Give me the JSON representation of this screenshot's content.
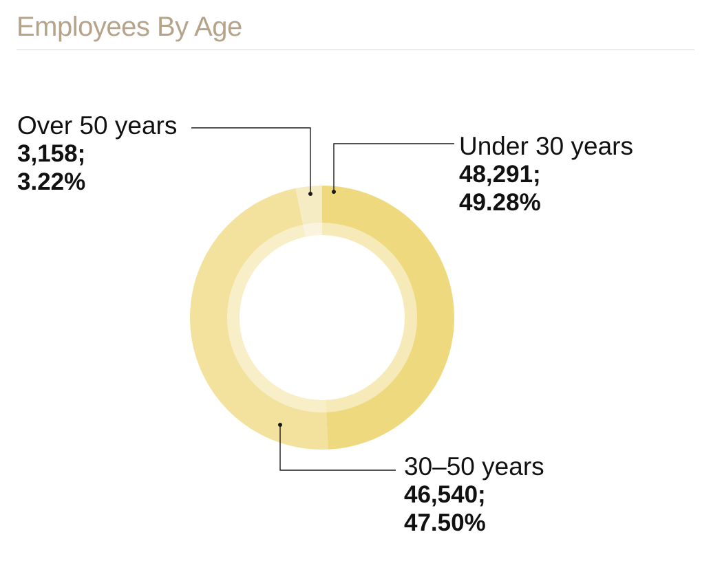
{
  "title": "Employees By Age",
  "colors": {
    "title": "#b5a48a",
    "rule": "#d9d9d9",
    "leader": "#1a1a1a",
    "inner_ring": "rgba(255,255,255,0.45)"
  },
  "chart_data": {
    "type": "pie",
    "variant": "donut",
    "title": "Employees By Age",
    "slices": [
      {
        "name": "Under 30 years",
        "value": 48291,
        "percent": 49.28,
        "value_label": "48,291;",
        "percent_label": "49.28%",
        "color": "#eed97e"
      },
      {
        "name": "30–50 years",
        "value": 46540,
        "percent": 47.5,
        "value_label": "46,540;",
        "percent_label": "47.50%",
        "color": "#f2e29d"
      },
      {
        "name": "Over 50 years",
        "value": 3158,
        "percent": 3.22,
        "value_label": "3,158;",
        "percent_label": "3.22%",
        "color": "#f6ecc4"
      }
    ],
    "legend": "none",
    "labels": "callouts with leader lines"
  }
}
